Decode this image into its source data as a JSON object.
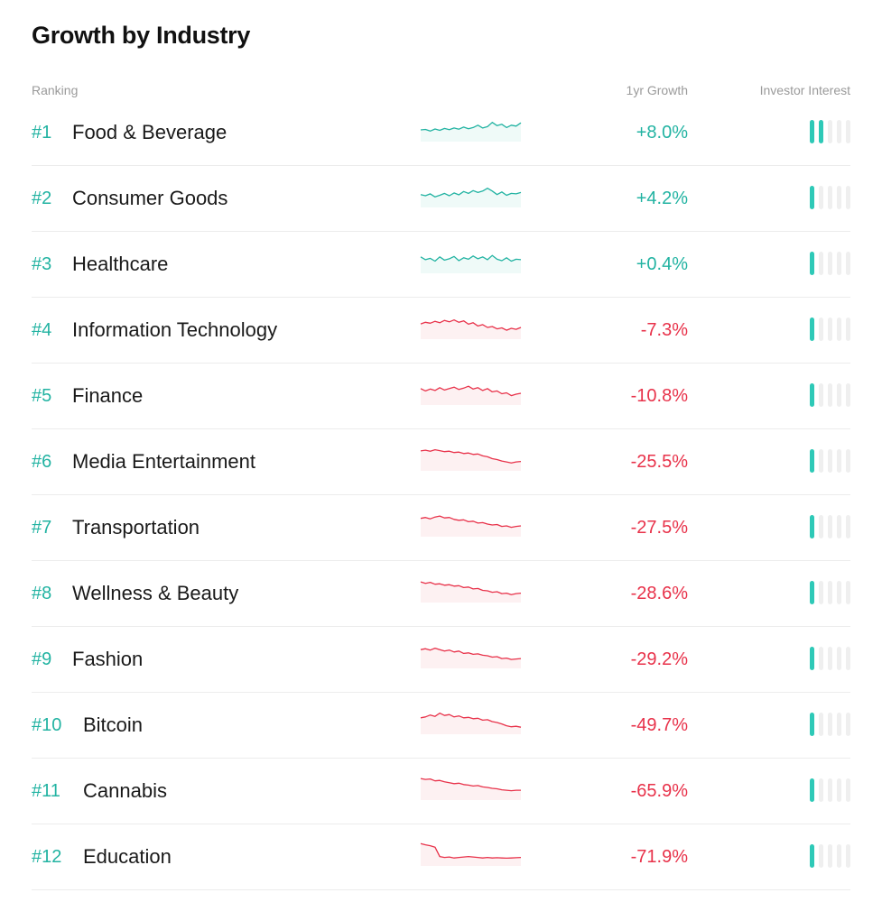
{
  "page": {
    "title": "Growth by Industry"
  },
  "columns": {
    "ranking": "Ranking",
    "growth": "1yr Growth",
    "interest": "Investor Interest"
  },
  "colors": {
    "positive": "#22b3a2",
    "negative": "#e8324a",
    "rank": "#22b3a2",
    "interest_on": "#2ec9b7",
    "interest_off": "#efefef"
  },
  "interest_scale_max": 5,
  "industries": [
    {
      "rank": "#1",
      "name": "Food & Beverage",
      "growth": "+8.0%",
      "trend": "up",
      "interest_level": 2,
      "spark": [
        0.5,
        0.48,
        0.55,
        0.46,
        0.52,
        0.44,
        0.49,
        0.42,
        0.47,
        0.38,
        0.45,
        0.4,
        0.3,
        0.42,
        0.36,
        0.18,
        0.32,
        0.26,
        0.4,
        0.3,
        0.34,
        0.2
      ]
    },
    {
      "rank": "#2",
      "name": "Consumer Goods",
      "growth": "+4.2%",
      "trend": "up",
      "interest_level": 1,
      "spark": [
        0.45,
        0.5,
        0.42,
        0.55,
        0.48,
        0.4,
        0.5,
        0.38,
        0.46,
        0.32,
        0.4,
        0.28,
        0.36,
        0.3,
        0.18,
        0.3,
        0.45,
        0.34,
        0.48,
        0.4,
        0.42,
        0.36
      ]
    },
    {
      "rank": "#3",
      "name": "Healthcare",
      "growth": "+0.4%",
      "trend": "up",
      "interest_level": 1,
      "spark": [
        0.3,
        0.42,
        0.36,
        0.48,
        0.3,
        0.44,
        0.38,
        0.28,
        0.46,
        0.34,
        0.4,
        0.26,
        0.38,
        0.3,
        0.42,
        0.24,
        0.4,
        0.46,
        0.34,
        0.48,
        0.4,
        0.42
      ]
    },
    {
      "rank": "#4",
      "name": "Information Technology",
      "growth": "-7.3%",
      "trend": "down",
      "interest_level": 1,
      "spark": [
        0.35,
        0.28,
        0.32,
        0.24,
        0.3,
        0.2,
        0.26,
        0.18,
        0.28,
        0.22,
        0.36,
        0.3,
        0.44,
        0.38,
        0.5,
        0.46,
        0.56,
        0.52,
        0.62,
        0.54,
        0.58,
        0.5
      ]
    },
    {
      "rank": "#5",
      "name": "Finance",
      "growth": "-10.8%",
      "trend": "down",
      "interest_level": 1,
      "spark": [
        0.3,
        0.4,
        0.32,
        0.38,
        0.26,
        0.36,
        0.3,
        0.24,
        0.34,
        0.28,
        0.2,
        0.32,
        0.26,
        0.38,
        0.3,
        0.44,
        0.4,
        0.52,
        0.48,
        0.6,
        0.54,
        0.5
      ]
    },
    {
      "rank": "#6",
      "name": "Media Entertainment",
      "growth": "-25.5%",
      "trend": "down",
      "interest_level": 1,
      "spark": [
        0.15,
        0.12,
        0.16,
        0.1,
        0.14,
        0.18,
        0.16,
        0.22,
        0.2,
        0.26,
        0.24,
        0.3,
        0.28,
        0.36,
        0.4,
        0.48,
        0.52,
        0.58,
        0.62,
        0.66,
        0.62,
        0.6
      ]
    },
    {
      "rank": "#7",
      "name": "Transportation",
      "growth": "-27.5%",
      "trend": "down",
      "interest_level": 1,
      "spark": [
        0.22,
        0.18,
        0.24,
        0.16,
        0.12,
        0.2,
        0.18,
        0.26,
        0.3,
        0.28,
        0.36,
        0.34,
        0.42,
        0.4,
        0.46,
        0.5,
        0.48,
        0.56,
        0.54,
        0.6,
        0.56,
        0.54
      ]
    },
    {
      "rank": "#8",
      "name": "Wellness & Beauty",
      "growth": "-28.6%",
      "trend": "down",
      "interest_level": 1,
      "spark": [
        0.12,
        0.18,
        0.14,
        0.22,
        0.2,
        0.26,
        0.24,
        0.3,
        0.28,
        0.36,
        0.34,
        0.42,
        0.4,
        0.48,
        0.5,
        0.56,
        0.54,
        0.62,
        0.6,
        0.66,
        0.62,
        0.6
      ]
    },
    {
      "rank": "#9",
      "name": "Fashion",
      "growth": "-29.2%",
      "trend": "down",
      "interest_level": 1,
      "spark": [
        0.2,
        0.16,
        0.22,
        0.14,
        0.2,
        0.26,
        0.22,
        0.3,
        0.26,
        0.36,
        0.34,
        0.4,
        0.38,
        0.44,
        0.46,
        0.52,
        0.5,
        0.58,
        0.56,
        0.62,
        0.6,
        0.58
      ]
    },
    {
      "rank": "#10",
      "name": "Bitcoin",
      "growth": "-49.7%",
      "trend": "down",
      "interest_level": 1,
      "spark": [
        0.3,
        0.26,
        0.18,
        0.24,
        0.1,
        0.2,
        0.16,
        0.26,
        0.22,
        0.3,
        0.28,
        0.34,
        0.32,
        0.4,
        0.38,
        0.46,
        0.5,
        0.56,
        0.64,
        0.68,
        0.66,
        0.7
      ]
    },
    {
      "rank": "#11",
      "name": "Cannabis",
      "growth": "-65.9%",
      "trend": "down",
      "interest_level": 1,
      "spark": [
        0.08,
        0.12,
        0.1,
        0.18,
        0.16,
        0.22,
        0.26,
        0.3,
        0.28,
        0.34,
        0.36,
        0.4,
        0.38,
        0.44,
        0.46,
        0.5,
        0.52,
        0.56,
        0.58,
        0.6,
        0.58,
        0.58
      ]
    },
    {
      "rank": "#12",
      "name": "Education",
      "growth": "-71.9%",
      "trend": "down",
      "interest_level": 1,
      "spark": [
        0.05,
        0.1,
        0.14,
        0.2,
        0.6,
        0.64,
        0.62,
        0.66,
        0.64,
        0.62,
        0.6,
        0.62,
        0.64,
        0.66,
        0.64,
        0.66,
        0.65,
        0.66,
        0.67,
        0.66,
        0.65,
        0.64
      ]
    }
  ]
}
